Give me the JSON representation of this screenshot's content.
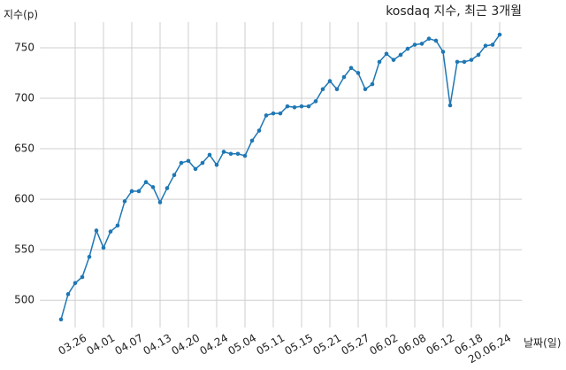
{
  "chart_data": {
    "type": "line",
    "title": "kosdaq 지수, 최근 3개월",
    "x_label": "날짜(일)",
    "y_label": "지수(p)",
    "categories": [
      null,
      null,
      "03.26",
      null,
      null,
      null,
      "04.01",
      null,
      null,
      null,
      "04.07",
      null,
      null,
      null,
      "04.13",
      null,
      null,
      null,
      "04.20",
      null,
      null,
      null,
      "04.24",
      null,
      null,
      null,
      "05.04",
      null,
      null,
      null,
      "05.11",
      null,
      null,
      null,
      "05.15",
      null,
      null,
      null,
      "05.21",
      null,
      null,
      null,
      "05.27",
      null,
      null,
      null,
      "06.02",
      null,
      null,
      null,
      "06.08",
      null,
      null,
      null,
      "06.12",
      null,
      null,
      null,
      "06.18",
      null,
      null,
      null,
      "20.06.24"
    ],
    "values": [
      481,
      506,
      517,
      523,
      543,
      569,
      552,
      568,
      574,
      598,
      608,
      608,
      617,
      612,
      597,
      611,
      624,
      636,
      638,
      630,
      636,
      644,
      634,
      647,
      645,
      645,
      643,
      658,
      668,
      683,
      685,
      685,
      692,
      691,
      692,
      692,
      697,
      709,
      717,
      709,
      721,
      730,
      725,
      709,
      714,
      736,
      744,
      738,
      743,
      749,
      753,
      754,
      759,
      757,
      746,
      693,
      736,
      736,
      738,
      743,
      752,
      753,
      763
    ],
    "color": "#1f77b4",
    "ylim": [
      473,
      771
    ],
    "yticks": [
      500,
      550,
      600,
      650,
      700,
      750
    ],
    "grid": true
  }
}
